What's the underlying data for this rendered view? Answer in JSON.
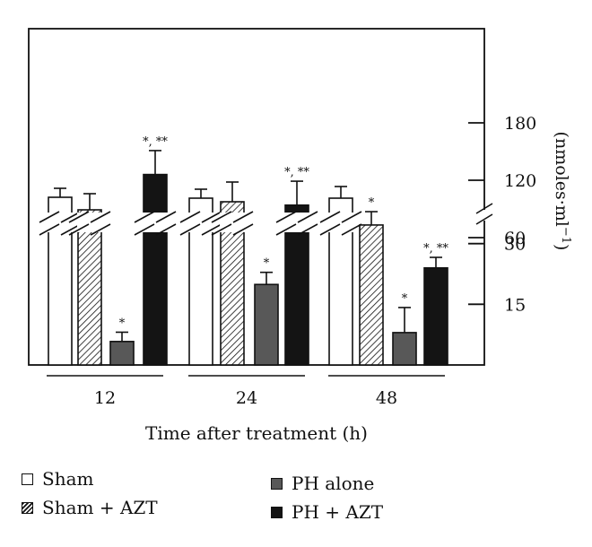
{
  "chart_data": {
    "type": "bar",
    "categories": [
      "12",
      "24",
      "48"
    ],
    "xlabel": "Time after treatment (h)",
    "ylabel": "(nmoles·ml",
    "ylabel_sup": "−1",
    "ylabel_close": ")",
    "y_axis": {
      "position": "right",
      "broken": true,
      "lower_ticks": [
        15,
        30
      ],
      "upper_ticks": [
        60,
        120,
        180
      ],
      "tick_labels": [
        "15",
        "30",
        "60",
        "120",
        "180"
      ]
    },
    "series": [
      {
        "name": "Sham",
        "fill": "#ffffff",
        "values": [
          null,
          null,
          null
        ],
        "errors": [
          null,
          null,
          null
        ],
        "annotations": [
          "",
          "",
          ""
        ]
      },
      {
        "name": "Sham + AZT",
        "fill": "hatch",
        "values": [
          null,
          null,
          34.6
        ],
        "errors": [
          null,
          null,
          3.3
        ],
        "annotations": [
          "",
          "",
          "*"
        ]
      },
      {
        "name": "PH alone",
        "fill": "#585858",
        "values": [
          5.8,
          19.9,
          8.0
        ],
        "errors": [
          2.3,
          3.0,
          6.2
        ],
        "annotations": [
          "*",
          "*",
          "*"
        ]
      },
      {
        "name": "PH + AZT",
        "fill": "#141414",
        "values": [
          126,
          94,
          24.0
        ],
        "errors": [
          25,
          25,
          2.6
        ],
        "annotations": [
          "*, **",
          "*, **",
          "*, **"
        ]
      }
    ]
  },
  "legend": [
    {
      "label": "Sham"
    },
    {
      "label": "Sham + AZT"
    },
    {
      "label": "PH alone"
    },
    {
      "label": "PH + AZT"
    }
  ]
}
